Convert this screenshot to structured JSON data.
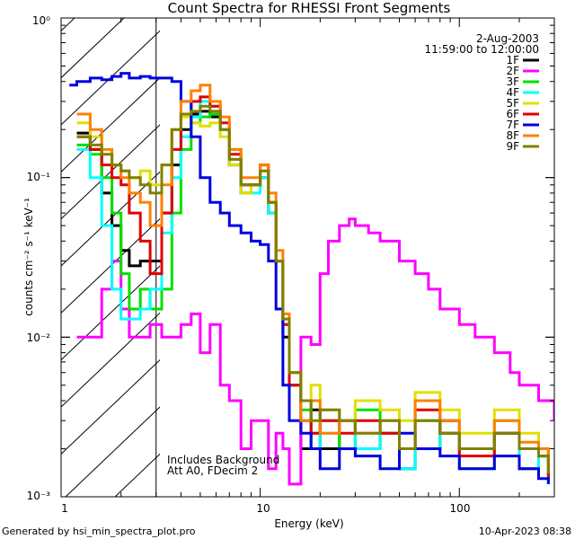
{
  "chart_data": {
    "type": "line",
    "title": "Count Spectra for RHESSI Front Segments",
    "xlabel": "Energy (keV)",
    "ylabel": "counts cm⁻² s⁻¹ keV⁻¹",
    "xscale": "log",
    "yscale": "log",
    "xlim": [
      1,
      300
    ],
    "ylim": [
      0.001,
      1
    ],
    "x_tick_labels": [
      "1",
      "10",
      "100"
    ],
    "y_tick_labels": [
      "10⁻³",
      "10⁻²",
      "10⁻¹",
      "10⁰"
    ],
    "date": "2-Aug-2003",
    "time_range": "11:59:00 to 12:00:00",
    "annotation_lines": [
      "Includes Background",
      "Att A0, FDecim 2"
    ],
    "footer_left": "Generated by hsi_min_spectra_plot.pro",
    "footer_right": "10-Apr-2023 08:38",
    "excluded_region": [
      1,
      3
    ],
    "series": [
      {
        "name": "1F",
        "color": "#000000",
        "x": [
          1.2,
          1.4,
          1.6,
          1.8,
          2.0,
          2.2,
          2.5,
          2.8,
          3.2,
          3.6,
          4.0,
          4.5,
          5.0,
          5.6,
          6.3,
          7.0,
          8.0,
          9.0,
          10,
          11,
          12,
          13,
          14,
          16,
          18,
          20,
          25,
          30,
          40,
          50,
          60,
          80,
          100,
          150,
          200,
          250,
          280
        ],
        "y": [
          0.19,
          0.15,
          0.08,
          0.05,
          0.035,
          0.028,
          0.03,
          0.03,
          0.06,
          0.12,
          0.2,
          0.25,
          0.26,
          0.24,
          0.2,
          0.12,
          0.08,
          0.09,
          0.1,
          0.06,
          0.03,
          0.01,
          0.005,
          0.002,
          0.0035,
          0.002,
          0.003,
          0.002,
          0.0025,
          0.0015,
          0.002,
          0.003,
          0.002,
          0.0025,
          0.0015,
          0.002,
          0.0012
        ]
      },
      {
        "name": "2F",
        "color": "#ff00ff",
        "x": [
          1.2,
          1.4,
          1.6,
          1.8,
          2.0,
          2.2,
          2.5,
          2.8,
          3.2,
          3.6,
          4.0,
          4.5,
          5.0,
          5.6,
          6.3,
          7.0,
          8.0,
          9.0,
          10,
          11,
          12,
          13,
          14,
          16,
          18,
          20,
          22,
          25,
          28,
          30,
          35,
          40,
          50,
          60,
          70,
          80,
          100,
          120,
          150,
          180,
          200,
          250,
          300
        ],
        "y": [
          0.01,
          0.01,
          0.02,
          0.03,
          0.015,
          0.01,
          0.01,
          0.012,
          0.01,
          0.01,
          0.012,
          0.014,
          0.008,
          0.012,
          0.005,
          0.004,
          0.002,
          0.003,
          0.003,
          0.0015,
          0.0025,
          0.002,
          0.0012,
          0.01,
          0.009,
          0.025,
          0.04,
          0.05,
          0.055,
          0.05,
          0.045,
          0.04,
          0.03,
          0.025,
          0.02,
          0.015,
          0.012,
          0.01,
          0.008,
          0.006,
          0.005,
          0.004,
          0.003
        ]
      },
      {
        "name": "3F",
        "color": "#00e000",
        "x": [
          1.2,
          1.4,
          1.6,
          1.8,
          2.0,
          2.2,
          2.5,
          2.8,
          3.2,
          3.6,
          4.0,
          4.5,
          5.0,
          5.6,
          6.3,
          7.0,
          8.0,
          9.0,
          10,
          11,
          12,
          13,
          14,
          16,
          18,
          20,
          25,
          30,
          40,
          50,
          60,
          80,
          100,
          150,
          200,
          250,
          280
        ],
        "y": [
          0.16,
          0.14,
          0.1,
          0.06,
          0.025,
          0.015,
          0.02,
          0.015,
          0.02,
          0.06,
          0.15,
          0.22,
          0.24,
          0.25,
          0.2,
          0.15,
          0.09,
          0.09,
          0.12,
          0.07,
          0.03,
          0.012,
          0.006,
          0.0035,
          0.0025,
          0.003,
          0.002,
          0.0035,
          0.0025,
          0.002,
          0.003,
          0.0025,
          0.0015,
          0.003,
          0.002,
          0.0018,
          0.0015
        ]
      },
      {
        "name": "4F",
        "color": "#00ffff",
        "x": [
          1.2,
          1.4,
          1.6,
          1.8,
          2.0,
          2.2,
          2.5,
          2.8,
          3.2,
          3.6,
          4.0,
          4.5,
          5.0,
          5.6,
          6.3,
          7.0,
          8.0,
          9.0,
          10,
          11,
          12,
          13,
          14,
          16,
          18,
          20,
          25,
          30,
          40,
          50,
          60,
          80,
          100,
          150,
          200,
          250,
          280
        ],
        "y": [
          0.15,
          0.1,
          0.05,
          0.02,
          0.013,
          0.013,
          0.015,
          0.02,
          0.045,
          0.1,
          0.18,
          0.24,
          0.3,
          0.28,
          0.2,
          0.13,
          0.08,
          0.08,
          0.1,
          0.06,
          0.03,
          0.012,
          0.005,
          0.003,
          0.002,
          0.0025,
          0.003,
          0.002,
          0.0025,
          0.0015,
          0.002,
          0.0025,
          0.002,
          0.0025,
          0.0015,
          0.0018,
          0.0012
        ]
      },
      {
        "name": "5F",
        "color": "#e0e000",
        "x": [
          1.2,
          1.4,
          1.6,
          1.8,
          2.0,
          2.2,
          2.5,
          2.8,
          3.2,
          3.6,
          4.0,
          4.5,
          5.0,
          5.6,
          6.3,
          7.0,
          8.0,
          9.0,
          10,
          11,
          12,
          13,
          14,
          16,
          18,
          20,
          25,
          30,
          40,
          50,
          60,
          80,
          100,
          150,
          200,
          250,
          280
        ],
        "y": [
          0.22,
          0.18,
          0.14,
          0.12,
          0.11,
          0.1,
          0.11,
          0.09,
          0.12,
          0.2,
          0.24,
          0.22,
          0.21,
          0.22,
          0.18,
          0.12,
          0.08,
          0.09,
          0.11,
          0.07,
          0.03,
          0.012,
          0.006,
          0.004,
          0.005,
          0.0035,
          0.003,
          0.004,
          0.0035,
          0.003,
          0.0045,
          0.0035,
          0.0025,
          0.0035,
          0.0025,
          0.002,
          0.0015
        ]
      },
      {
        "name": "6F",
        "color": "#e00000",
        "x": [
          1.2,
          1.4,
          1.6,
          1.8,
          2.0,
          2.2,
          2.5,
          2.8,
          3.2,
          3.6,
          4.0,
          4.5,
          5.0,
          5.6,
          6.3,
          7.0,
          8.0,
          9.0,
          10,
          11,
          12,
          13,
          14,
          16,
          18,
          20,
          25,
          30,
          40,
          50,
          60,
          80,
          100,
          150,
          200,
          250,
          280
        ],
        "y": [
          0.18,
          0.15,
          0.12,
          0.1,
          0.09,
          0.06,
          0.04,
          0.025,
          0.06,
          0.15,
          0.25,
          0.3,
          0.32,
          0.28,
          0.22,
          0.14,
          0.09,
          0.09,
          0.12,
          0.07,
          0.03,
          0.012,
          0.005,
          0.003,
          0.0025,
          0.003,
          0.0025,
          0.003,
          0.0025,
          0.002,
          0.0035,
          0.0025,
          0.0018,
          0.0025,
          0.002,
          0.0018,
          0.0013
        ]
      },
      {
        "name": "7F",
        "color": "#0000e0",
        "x": [
          1.1,
          1.2,
          1.4,
          1.6,
          1.8,
          2.0,
          2.2,
          2.5,
          2.8,
          3.0,
          3.2,
          3.6,
          4.0,
          4.5,
          5.0,
          5.6,
          6.3,
          7.0,
          8.0,
          9.0,
          10,
          11,
          12,
          13,
          14,
          16,
          18,
          20,
          25,
          30,
          40,
          50,
          60,
          80,
          100,
          150,
          200,
          250,
          280
        ],
        "y": [
          0.38,
          0.4,
          0.42,
          0.41,
          0.43,
          0.45,
          0.42,
          0.43,
          0.42,
          0.42,
          0.42,
          0.4,
          0.3,
          0.18,
          0.1,
          0.07,
          0.06,
          0.05,
          0.045,
          0.04,
          0.038,
          0.03,
          0.015,
          0.005,
          0.003,
          0.0025,
          0.002,
          0.0015,
          0.002,
          0.0018,
          0.0015,
          0.0025,
          0.002,
          0.0018,
          0.0015,
          0.0018,
          0.0015,
          0.0013,
          0.0012
        ]
      },
      {
        "name": "8F",
        "color": "#ff8000",
        "x": [
          1.2,
          1.4,
          1.6,
          1.8,
          2.0,
          2.2,
          2.5,
          2.8,
          3.2,
          3.6,
          4.0,
          4.5,
          5.0,
          5.6,
          6.3,
          7.0,
          8.0,
          9.0,
          10,
          11,
          12,
          13,
          14,
          16,
          18,
          20,
          25,
          30,
          40,
          50,
          60,
          80,
          100,
          150,
          200,
          250,
          280
        ],
        "y": [
          0.25,
          0.2,
          0.15,
          0.12,
          0.1,
          0.08,
          0.07,
          0.05,
          0.09,
          0.2,
          0.3,
          0.35,
          0.38,
          0.3,
          0.24,
          0.15,
          0.1,
          0.1,
          0.12,
          0.08,
          0.035,
          0.014,
          0.006,
          0.003,
          0.004,
          0.0025,
          0.003,
          0.0025,
          0.003,
          0.002,
          0.004,
          0.003,
          0.002,
          0.003,
          0.0022,
          0.002,
          0.0015
        ]
      },
      {
        "name": "9F",
        "color": "#808000",
        "x": [
          1.2,
          1.4,
          1.6,
          1.8,
          2.0,
          2.2,
          2.5,
          2.8,
          3.2,
          3.6,
          4.0,
          4.5,
          5.0,
          5.6,
          6.3,
          7.0,
          8.0,
          9.0,
          10,
          11,
          12,
          13,
          14,
          16,
          18,
          20,
          25,
          30,
          40,
          50,
          60,
          80,
          100,
          150,
          200,
          250,
          280
        ],
        "y": [
          0.18,
          0.16,
          0.14,
          0.12,
          0.11,
          0.1,
          0.09,
          0.08,
          0.12,
          0.2,
          0.25,
          0.26,
          0.28,
          0.26,
          0.2,
          0.13,
          0.09,
          0.09,
          0.11,
          0.07,
          0.03,
          0.013,
          0.006,
          0.004,
          0.003,
          0.0035,
          0.003,
          0.0025,
          0.003,
          0.002,
          0.003,
          0.0025,
          0.002,
          0.0025,
          0.002,
          0.0018,
          0.0014
        ]
      }
    ]
  }
}
